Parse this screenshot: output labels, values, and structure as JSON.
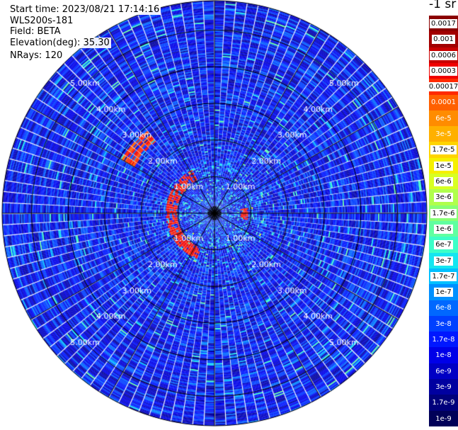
{
  "info": {
    "start_time": "Start time: 2023/08/21 17:14:16",
    "instrument": "WLS200s-181",
    "field": "Field: BETA",
    "elevation": "Elevation(deg): 35.30",
    "nrays": "NRays: 120"
  },
  "colorbar": {
    "unit": "-1 sr",
    "labels": [
      "0.0017",
      "0.001",
      "0.0006",
      "0.0003",
      "0.00017",
      "0.0001",
      "6e-5",
      "3e-5",
      "1.7e-5",
      "1e-5",
      "6e-6",
      "3e-6",
      "1.7e-6",
      "1e-6",
      "6e-7",
      "3e-7",
      "1.7e-7",
      "1e-7",
      "6e-8",
      "3e-8",
      "1.7e-8",
      "1e-8",
      "6e-9",
      "3e-9",
      "1.7e-9",
      "1e-9"
    ],
    "colors": [
      "#8b0000",
      "#a10000",
      "#c80000",
      "#f00000",
      "#ff2a00",
      "#ff6000",
      "#ff8c00",
      "#ffb000",
      "#ffd400",
      "#f5f000",
      "#d8ff22",
      "#b0ff4c",
      "#88ff76",
      "#60ffa0",
      "#3cffc8",
      "#14e6f0",
      "#00c0ff",
      "#0090ff",
      "#0068ff",
      "#0040ff",
      "#0018ff",
      "#0000e8",
      "#0000c4",
      "#0000a0",
      "#00007c",
      "#000058"
    ]
  },
  "chart_data": {
    "type": "ppi_polar",
    "field": "BETA",
    "elevation_deg": 35.3,
    "n_rays": 120,
    "range_unit": "km",
    "range_rings_km": [
      1.0,
      2.0,
      3.0,
      4.0,
      5.0
    ],
    "range_ring_labels": [
      "1.00km",
      "2.00km",
      "3.00km",
      "4.00km",
      "5.00km"
    ],
    "max_range_km": 5.8,
    "colorscale": "log",
    "value_range": [
      1e-09,
      0.0017
    ],
    "background_level_range": [
      3e-09,
      6e-08
    ],
    "features": [
      {
        "name": "near-range ring echo",
        "range_km": [
          1.0,
          1.3
        ],
        "azimuth_deg": [
          200,
          330
        ],
        "level": 0.0003
      },
      {
        "name": "north-west arc",
        "range_km": [
          2.5,
          2.9
        ],
        "azimuth_deg": [
          300,
          318
        ],
        "level": 0.00017
      },
      {
        "name": "east near echo",
        "range_km": [
          0.7,
          0.9
        ],
        "azimuth_deg": [
          80,
          100
        ],
        "level": 0.0003
      }
    ]
  }
}
